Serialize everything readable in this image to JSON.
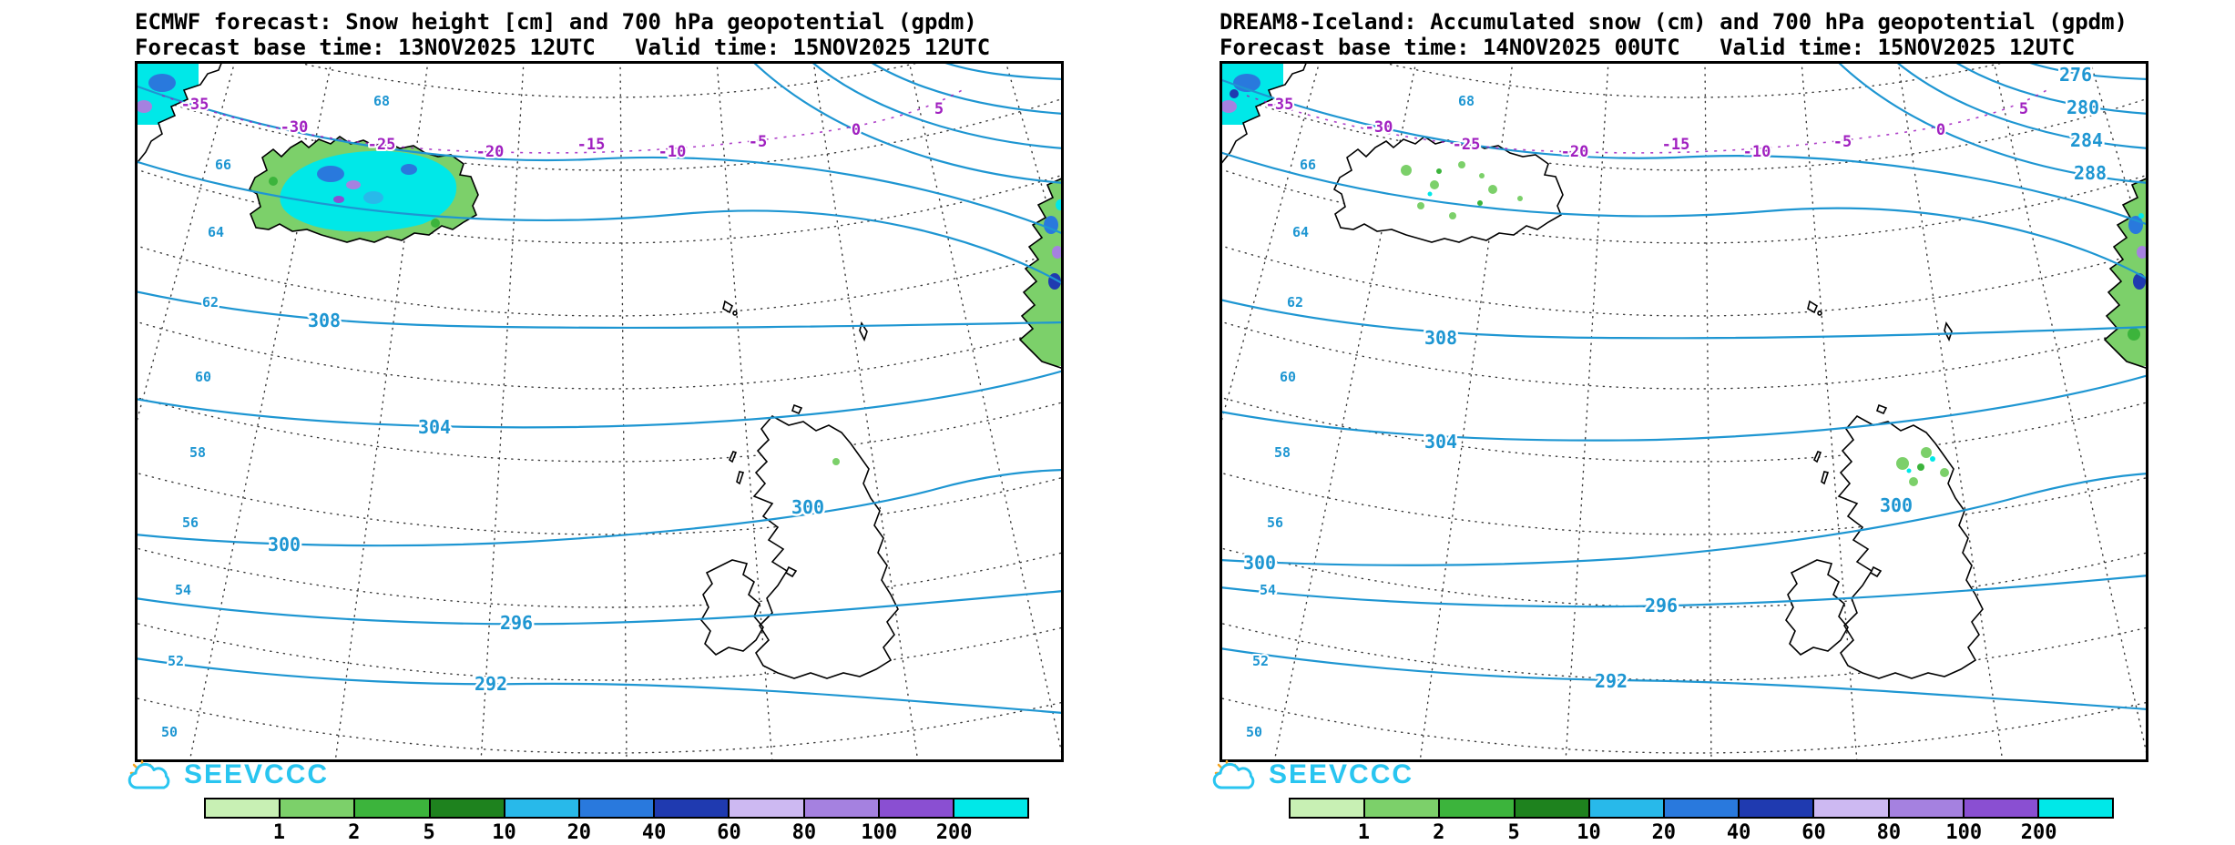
{
  "panels": [
    {
      "title": "ECMWF forecast: Snow height [cm] and 700 hPa geopotential (gpdm)",
      "subtitle": "Forecast base time: 13NOV2025 12UTC   Valid time: 15NOV2025 12UTC",
      "map": {
        "lat_labels": [
          "68",
          "66",
          "64",
          "62",
          "60",
          "58",
          "56",
          "54",
          "52",
          "50"
        ],
        "temp_labels": [
          "-35",
          "-30",
          "-25",
          "-20",
          "-15",
          "-10",
          "-5",
          "0",
          "5"
        ],
        "geo_labels": [
          "308",
          "304",
          "300",
          "296",
          "292",
          "300"
        ]
      }
    },
    {
      "title": "DREAM8-Iceland: Accumulated snow (cm) and 700 hPa geopotential (gpdm)",
      "subtitle": "Forecast base time: 14NOV2025 00UTC   Valid time: 15NOV2025 12UTC",
      "map": {
        "lat_labels": [
          "68",
          "66",
          "64",
          "62",
          "60",
          "58",
          "56",
          "54",
          "52",
          "50"
        ],
        "temp_labels": [
          "-35",
          "-30",
          "-25",
          "-20",
          "-15",
          "-10",
          "-5",
          "0",
          "5"
        ],
        "geo_labels": [
          "308",
          "304",
          "300",
          "296",
          "292",
          "300",
          "276",
          "280",
          "284",
          "288"
        ]
      }
    }
  ],
  "colorbar": {
    "labels": [
      "1",
      "2",
      "5",
      "10",
      "20",
      "40",
      "60",
      "80",
      "100",
      "200"
    ],
    "colors": [
      "#c8f0b4",
      "#7cd06a",
      "#3cb43c",
      "#1e821e",
      "#28b9ea",
      "#2979dd",
      "#1f3ab0",
      "#cdb9f2",
      "#a581e0",
      "#8a4fd2",
      "#00e8e8"
    ]
  },
  "logo": {
    "text": "SEEVCCC"
  },
  "colors": {
    "contour_line": "#1e96d2",
    "temp_label": "#a020c0",
    "logo_cyan": "#29c5f0",
    "sun_orange": "#f5a623"
  }
}
